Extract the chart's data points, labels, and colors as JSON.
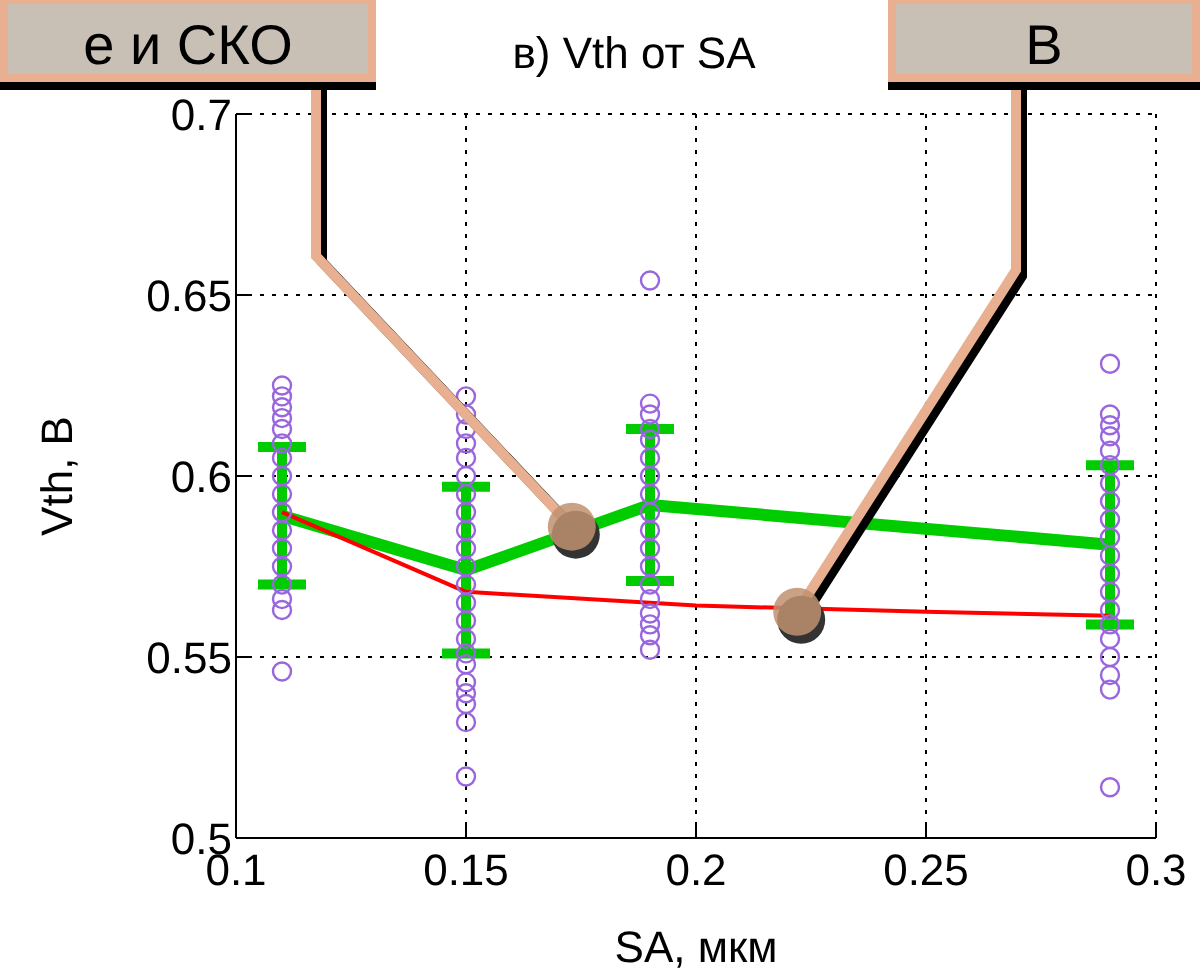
{
  "chart_data": {
    "type": "scatter",
    "title": "в) Vth от SA",
    "xlabel": "SA, мкм",
    "ylabel": "Vth, В",
    "xlim": [
      0.1,
      0.3
    ],
    "xticks": [
      0.1,
      0.15,
      0.2,
      0.25,
      0.3
    ],
    "ylim": [
      0.5,
      0.7
    ],
    "yticks": [
      0.5,
      0.55,
      0.6,
      0.65,
      0.7
    ],
    "grid": true,
    "series": [
      {
        "color": "#9966dd",
        "marker": "circle",
        "x": [
          0.11,
          0.11,
          0.11,
          0.11,
          0.11,
          0.11,
          0.11,
          0.11,
          0.11,
          0.11,
          0.11,
          0.11,
          0.11,
          0.11,
          0.11,
          0.11,
          0.11,
          0.15,
          0.15,
          0.15,
          0.15,
          0.15,
          0.15,
          0.15,
          0.15,
          0.15,
          0.15,
          0.15,
          0.15,
          0.15,
          0.15,
          0.15,
          0.15,
          0.15,
          0.15,
          0.15,
          0.15,
          0.15,
          0.15,
          0.19,
          0.19,
          0.19,
          0.19,
          0.19,
          0.19,
          0.19,
          0.19,
          0.19,
          0.19,
          0.19,
          0.19,
          0.19,
          0.19,
          0.19,
          0.19,
          0.19,
          0.19,
          0.29,
          0.29,
          0.29,
          0.29,
          0.29,
          0.29,
          0.29,
          0.29,
          0.29,
          0.29,
          0.29,
          0.29,
          0.29,
          0.29,
          0.29,
          0.29,
          0.29,
          0.29,
          0.29,
          0.29
        ],
        "values": [
          0.625,
          0.622,
          0.619,
          0.616,
          0.613,
          0.609,
          0.605,
          0.6,
          0.595,
          0.59,
          0.585,
          0.58,
          0.575,
          0.57,
          0.566,
          0.563,
          0.546,
          0.622,
          0.617,
          0.613,
          0.609,
          0.605,
          0.6,
          0.595,
          0.59,
          0.585,
          0.58,
          0.575,
          0.57,
          0.565,
          0.56,
          0.555,
          0.551,
          0.548,
          0.543,
          0.54,
          0.537,
          0.532,
          0.517,
          0.654,
          0.62,
          0.617,
          0.613,
          0.61,
          0.605,
          0.6,
          0.595,
          0.59,
          0.585,
          0.58,
          0.575,
          0.57,
          0.566,
          0.562,
          0.559,
          0.556,
          0.552,
          0.631,
          0.617,
          0.614,
          0.611,
          0.607,
          0.603,
          0.598,
          0.593,
          0.588,
          0.583,
          0.578,
          0.573,
          0.568,
          0.563,
          0.559,
          0.555,
          0.55,
          0.545,
          0.541,
          0.514
        ]
      },
      {
        "type": "line",
        "color": "#00cc00",
        "marker": "none",
        "x": [
          0.11,
          0.15,
          0.19,
          0.29
        ],
        "values": [
          0.589,
          0.574,
          0.592,
          0.581
        ],
        "errors": [
          0.019,
          0.023,
          0.021,
          0.022
        ]
      },
      {
        "type": "line",
        "color": "#ff0000",
        "marker": "none",
        "x": [
          0.11,
          0.15,
          0.19,
          0.2,
          0.25,
          0.29
        ],
        "values": [
          0.59,
          0.568,
          0.565,
          0.5642,
          0.5625,
          0.5614
        ]
      }
    ],
    "annotations": [
      {
        "text": "е и СКО",
        "x": 0.173,
        "y": 0.586
      },
      {
        "text": "В",
        "x": 0.222,
        "y": 0.5625
      }
    ]
  }
}
